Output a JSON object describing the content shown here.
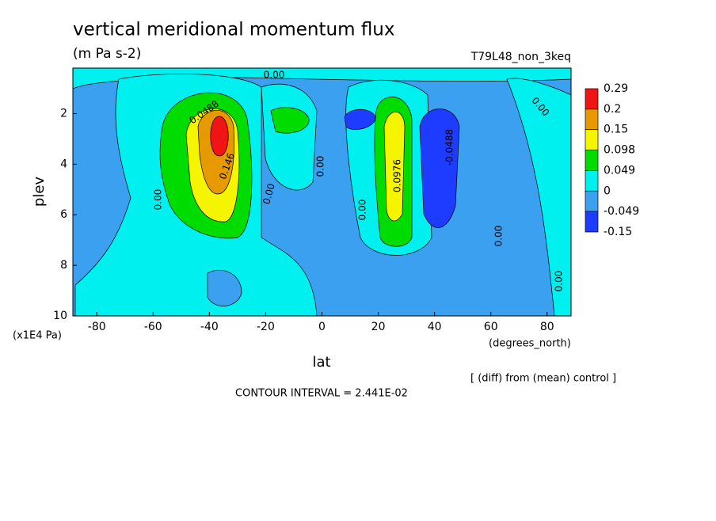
{
  "chart_data": {
    "type": "contour",
    "title": "vertical meridional momentum flux",
    "subtitle": "(m Pa s-2)",
    "run_label": "T79L48_non_3keq",
    "x_label": "lat",
    "x_units": "(degrees_north)",
    "y_label": "plev",
    "y_units": "(x1E4 Pa)",
    "xlim": [
      -88.5,
      88.5
    ],
    "xticks": [
      -80,
      -60,
      -40,
      -20,
      0,
      20,
      40,
      60,
      80
    ],
    "ylim": [
      10,
      0.2
    ],
    "yticks": [
      2,
      4,
      6,
      8,
      10
    ],
    "y_inverted": true,
    "levels": [
      -0.15,
      -0.049,
      0,
      0.049,
      0.098,
      0.15,
      0.2,
      0.29
    ],
    "colors": [
      "#1e3cff",
      "#3ca0f0",
      "#00f0f0",
      "#00dc00",
      "#f5f500",
      "#e69a00",
      "#f01414"
    ],
    "contour_labels": [
      {
        "value": 0,
        "label": "0.00"
      },
      {
        "value": 0.0488,
        "label": "0.0488"
      },
      {
        "value": 0.146,
        "label": "0.146"
      },
      {
        "value": 0,
        "label": "0.00"
      },
      {
        "value": 0,
        "label": "0.00"
      },
      {
        "value": 0,
        "label": "0.00"
      },
      {
        "value": 0,
        "label": "0.00"
      },
      {
        "value": 0.0976,
        "label": "0.0976"
      },
      {
        "value": -0.0488,
        "label": "-0.0488"
      },
      {
        "value": 0,
        "label": "0.00"
      },
      {
        "value": 0,
        "label": "0.00"
      },
      {
        "value": 0,
        "label": "0.00"
      }
    ],
    "note": "[ (diff) from (mean) control ]",
    "contour_interval": "CONTOUR INTERVAL = 2.441E-02"
  }
}
